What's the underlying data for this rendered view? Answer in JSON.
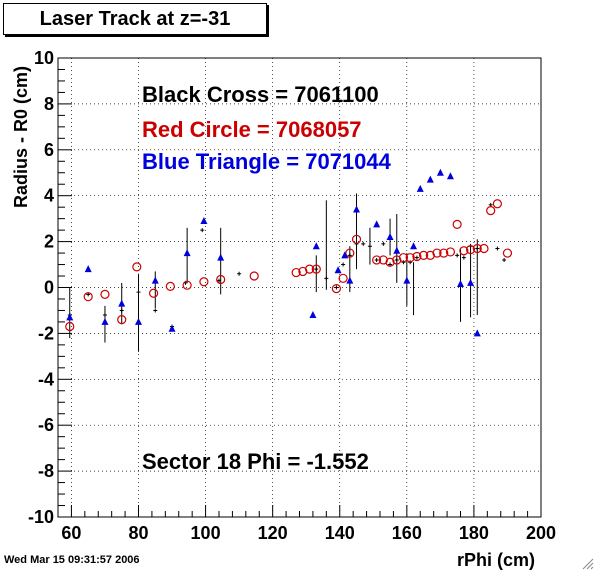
{
  "window": {
    "title": "Laser Track at z=-31",
    "timestamp": "Wed Mar 15 09:31:57 2006"
  },
  "chart_data": {
    "type": "scatter",
    "xlabel": "rPhi (cm)",
    "ylabel": "Radius - R0 (cm)",
    "xlim": [
      56,
      200
    ],
    "ylim": [
      -10,
      10
    ],
    "x_ticks": [
      60,
      80,
      100,
      120,
      140,
      160,
      180,
      200
    ],
    "y_ticks": [
      -10,
      -8,
      -6,
      -4,
      -2,
      0,
      2,
      4,
      6,
      8,
      10
    ],
    "grid": true,
    "annotations": {
      "black_label": "Black Cross  = 7061100",
      "red_label": "Red Circle = 7068057",
      "blue_label": "Blue Triangle = 7071044",
      "sector_label": "Sector 18 Phi = -1.552"
    },
    "colors": {
      "black": "#000000",
      "red": "#cc0000",
      "blue": "#0000dd"
    },
    "series": [
      {
        "marker": "cross",
        "color": "black",
        "points": [
          [
            59.5,
            -1.2
          ],
          [
            65,
            -0.3
          ],
          [
            70,
            -1.2
          ],
          [
            75,
            -1.0
          ],
          [
            80,
            -0.2
          ],
          [
            85,
            -1.0
          ],
          [
            90,
            -1.7
          ],
          [
            94,
            0.2
          ],
          [
            99,
            2.5
          ],
          [
            104,
            0.3
          ],
          [
            110,
            0.6
          ],
          [
            133,
            0.8
          ],
          [
            136,
            0.4
          ],
          [
            139,
            0.0
          ],
          [
            141,
            1.0
          ],
          [
            143,
            1.4
          ],
          [
            145,
            1.9
          ],
          [
            147,
            1.9
          ],
          [
            149,
            1.8
          ],
          [
            151,
            1.2
          ],
          [
            153,
            1.9
          ],
          [
            155,
            1.0
          ],
          [
            157,
            1.2
          ],
          [
            159,
            1.1
          ],
          [
            161,
            1.1
          ],
          [
            163,
            1.3
          ],
          [
            175,
            1.4
          ],
          [
            177,
            1.3
          ],
          [
            179,
            1.8
          ],
          [
            181,
            1.7
          ],
          [
            185,
            3.6
          ],
          [
            187,
            1.7
          ],
          [
            189,
            1.2
          ]
        ]
      },
      {
        "marker": "circle",
        "color": "red",
        "points": [
          [
            59.5,
            -1.7
          ],
          [
            65,
            -0.4
          ],
          [
            70,
            -0.3
          ],
          [
            75,
            -1.4
          ],
          [
            79.5,
            0.9
          ],
          [
            84.5,
            -0.25
          ],
          [
            89.5,
            0.05
          ],
          [
            94.5,
            0.1
          ],
          [
            99.5,
            0.25
          ],
          [
            104.5,
            0.35
          ],
          [
            114.5,
            0.5
          ],
          [
            127,
            0.65
          ],
          [
            129,
            0.7
          ],
          [
            131,
            0.8
          ],
          [
            133,
            0.8
          ],
          [
            139,
            -0.05
          ],
          [
            141,
            0.4
          ],
          [
            143,
            1.5
          ],
          [
            145,
            2.1
          ],
          [
            151,
            1.2
          ],
          [
            153,
            1.2
          ],
          [
            155,
            1.1
          ],
          [
            157,
            1.2
          ],
          [
            159,
            1.3
          ],
          [
            161,
            1.3
          ],
          [
            163,
            1.35
          ],
          [
            165,
            1.4
          ],
          [
            167,
            1.4
          ],
          [
            169,
            1.5
          ],
          [
            171,
            1.5
          ],
          [
            173,
            1.55
          ],
          [
            175,
            2.75
          ],
          [
            177,
            1.6
          ],
          [
            179,
            1.65
          ],
          [
            181,
            1.7
          ],
          [
            183,
            1.7
          ],
          [
            185,
            3.35
          ],
          [
            187,
            3.65
          ],
          [
            190,
            1.5
          ]
        ]
      },
      {
        "marker": "triangle",
        "color": "blue",
        "points": [
          [
            59.5,
            -1.3
          ],
          [
            65,
            0.8
          ],
          [
            70,
            -1.5
          ],
          [
            75,
            -0.7
          ],
          [
            80,
            -1.5
          ],
          [
            85,
            0.3
          ],
          [
            90,
            -1.8
          ],
          [
            94.5,
            1.5
          ],
          [
            99.5,
            2.9
          ],
          [
            104.5,
            1.3
          ],
          [
            132,
            -1.2
          ],
          [
            133,
            1.8
          ],
          [
            139.5,
            0.75
          ],
          [
            141.5,
            1.4
          ],
          [
            143,
            0.3
          ],
          [
            145,
            3.4
          ],
          [
            151,
            2.75
          ],
          [
            155,
            2.2
          ],
          [
            157,
            1.6
          ],
          [
            160,
            0.3
          ],
          [
            162,
            1.8
          ],
          [
            164,
            4.3
          ],
          [
            167,
            4.7
          ],
          [
            170,
            5.0
          ],
          [
            173,
            4.85
          ],
          [
            176,
            0.15
          ],
          [
            179,
            0.2
          ],
          [
            181,
            -2.0
          ]
        ]
      }
    ]
  }
}
